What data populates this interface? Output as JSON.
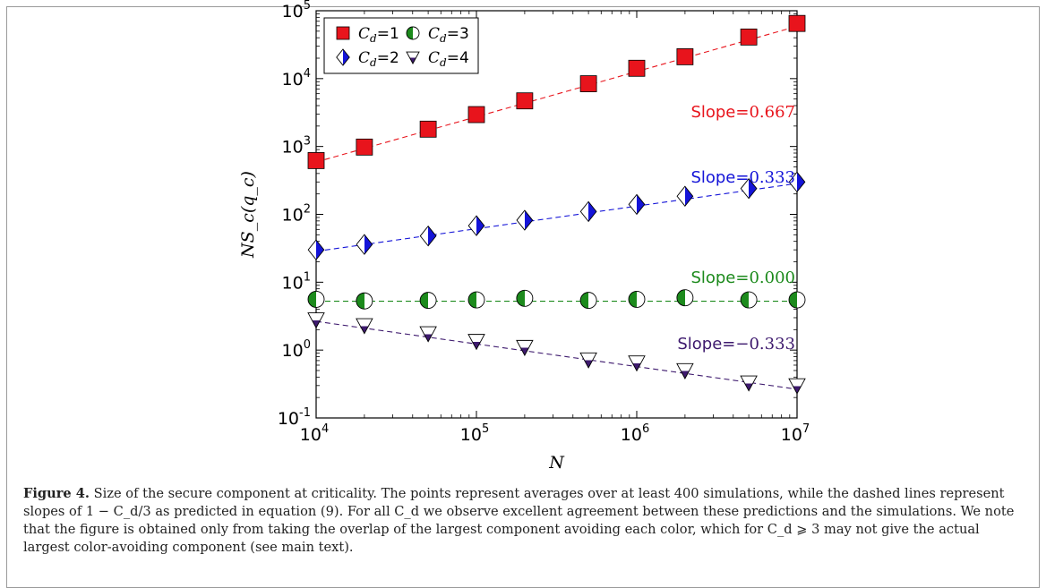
{
  "chart_data": {
    "type": "scatter",
    "xscale": "log",
    "yscale": "log",
    "xlim": [
      10000,
      10000000
    ],
    "ylim": [
      0.1,
      100000
    ],
    "xlabel": "N",
    "ylabel": "NS_c(q_c)",
    "x_tick_labels": [
      "10^4",
      "10^5",
      "10^6",
      "10^7"
    ],
    "y_tick_labels": [
      "10^-1",
      "10^0",
      "10^1",
      "10^2",
      "10^3",
      "10^4",
      "10^5"
    ],
    "legend_position": "top-left",
    "x": [
      10000,
      20000,
      50000,
      100000,
      200000,
      500000,
      1000000,
      2000000,
      5000000,
      10000000
    ],
    "series": [
      {
        "name": "C_d=1",
        "legend_label": "=1",
        "marker": "square",
        "color": "#e8141c",
        "values": [
          620,
          980,
          1800,
          2950,
          4700,
          8400,
          14200,
          21000,
          41000,
          65000
        ],
        "fit_start": 590,
        "slope_label": "Slope=",
        "slope_value": "0.667"
      },
      {
        "name": "C_d=2",
        "legend_label": "=2",
        "marker": "diamond-half",
        "color": "#1414d8",
        "values": [
          30,
          36,
          48,
          68,
          82,
          110,
          140,
          185,
          240,
          300
        ],
        "fit_start": 28.5,
        "slope_label": "Slope=",
        "slope_value": "0.333"
      },
      {
        "name": "C_d=3",
        "legend_label": "=3",
        "marker": "circle-half",
        "color": "#1c8a1c",
        "values": [
          5.6,
          5.3,
          5.4,
          5.5,
          5.8,
          5.4,
          5.6,
          5.9,
          5.5,
          5.5
        ],
        "fit_start": 5.25,
        "slope_label": "Slope=",
        "slope_value": "0.000"
      },
      {
        "name": "C_d=4",
        "legend_label": "=4",
        "marker": "triangle-half",
        "color": "#3e1a6e",
        "values": [
          2.8,
          2.3,
          1.75,
          1.35,
          1.1,
          0.72,
          0.65,
          0.5,
          0.33,
          0.3
        ],
        "fit_start": 2.65,
        "slope_label": "Slope=",
        "slope_value": "−0.333"
      }
    ]
  },
  "caption": {
    "label": "Figure 4.",
    "text": "Size of the secure component at criticality. The points represent averages over at least 400 simulations, while the dashed lines represent slopes of 1 − C_d/3 as predicted in equation (9). For all C_d we observe excellent agreement between these predictions and the simulations. We note that the figure is obtained only from taking the overlap of the largest component avoiding each color, which for C_d ⩾ 3 may not give the actual largest color-avoiding component (see main text)."
  }
}
